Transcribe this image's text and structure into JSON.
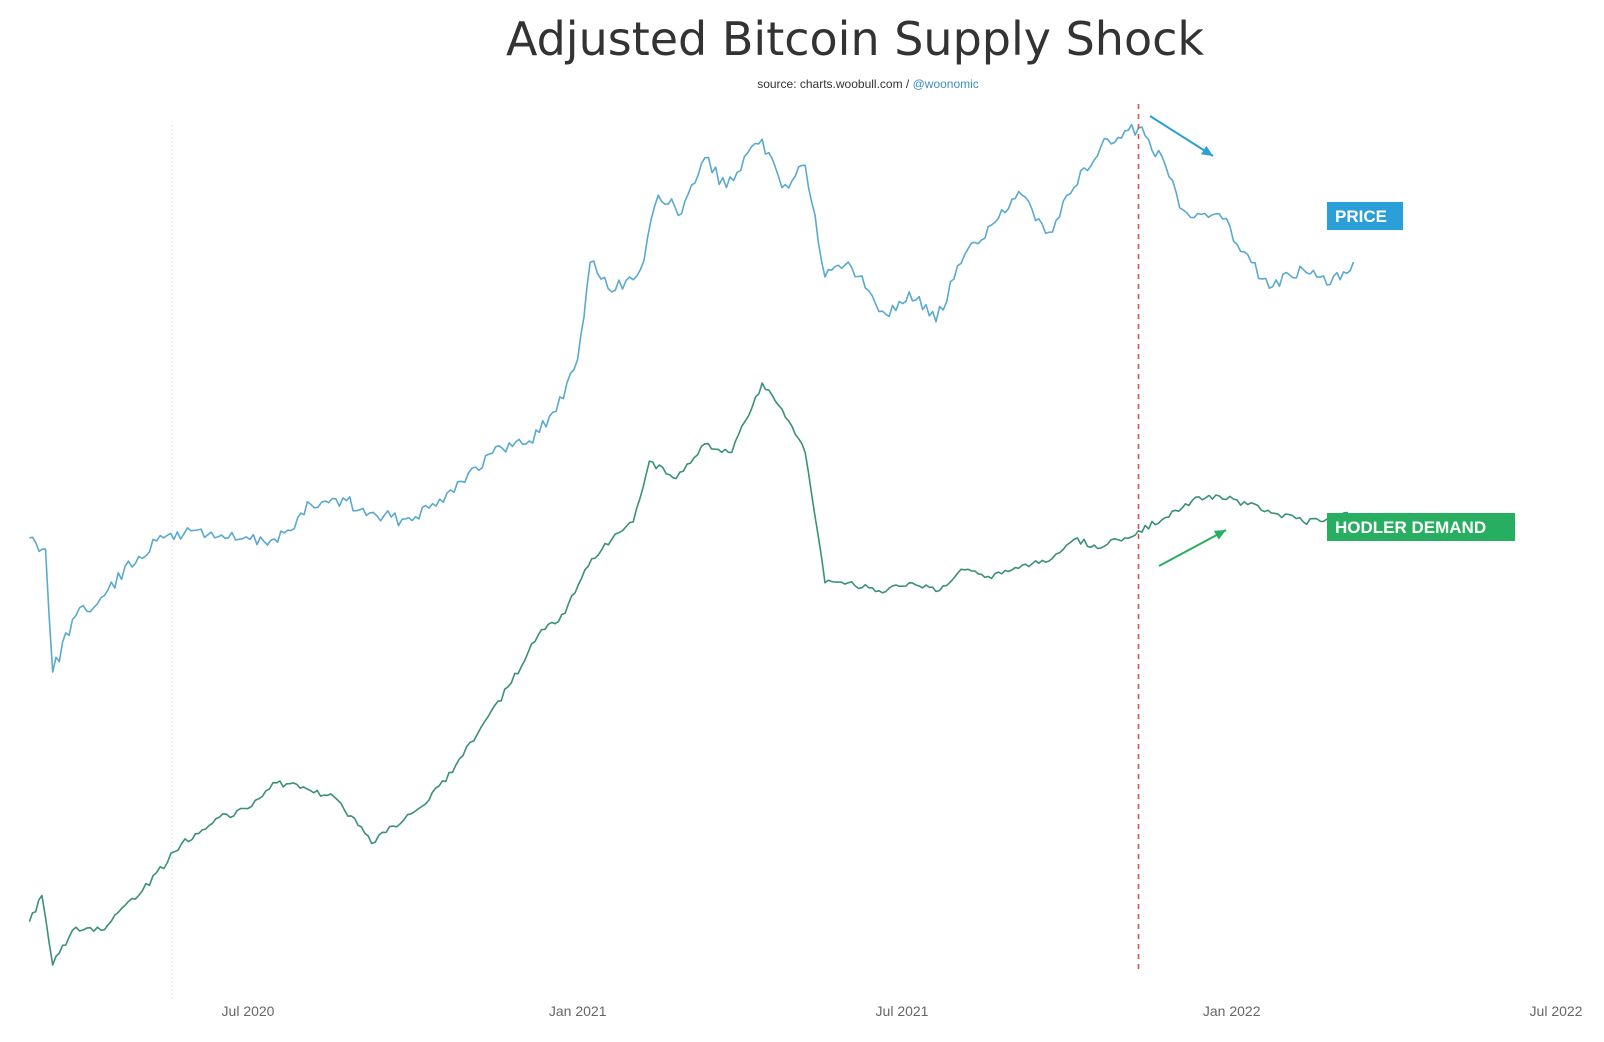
{
  "chart_data": {
    "type": "line",
    "title": "Adjusted Bitcoin Supply Shock",
    "subtitle_prefix": "source: charts.woobull.com / ",
    "subtitle_handle": "@woonomic",
    "xlabel": "",
    "ylabel": "",
    "x_ticks": [
      "Jul 2020",
      "Jan 2021",
      "Jul 2021",
      "Jan 2022",
      "Jul 2022"
    ],
    "xlim": [
      "2020-03-01",
      "2022-07-01"
    ],
    "grid": false,
    "y_axis_visible": false,
    "marker_date": "2021-11-10",
    "marker_style": "red dashed vertical line",
    "colors": {
      "price": "#5aa9cf",
      "hodler": "#3a9078",
      "price_tag": "#2a9fd8",
      "hodler_tag": "#27ae60",
      "marker": "#d9534f",
      "reference_line": "#e2e2e2"
    },
    "annotations": [
      {
        "label": "arrow-down",
        "series": "Price",
        "from": "2021-11-15",
        "to": "2021-12-20"
      },
      {
        "label": "arrow-up",
        "series": "Hodler Demand",
        "from": "2021-11-20",
        "to": "2022-01-01"
      }
    ],
    "series": [
      {
        "name": "PRICE",
        "scale": "relative (no axis shown)",
        "points": [
          [
            "2020-03-01",
            0.58
          ],
          [
            "2020-03-10",
            0.55
          ],
          [
            "2020-03-14",
            0.22
          ],
          [
            "2020-03-25",
            0.36
          ],
          [
            "2020-04-10",
            0.42
          ],
          [
            "2020-05-01",
            0.53
          ],
          [
            "2020-05-15",
            0.58
          ],
          [
            "2020-06-01",
            0.6
          ],
          [
            "2020-06-20",
            0.58
          ],
          [
            "2020-07-10",
            0.57
          ],
          [
            "2020-07-25",
            0.6
          ],
          [
            "2020-08-05",
            0.67
          ],
          [
            "2020-08-25",
            0.68
          ],
          [
            "2020-09-05",
            0.64
          ],
          [
            "2020-09-25",
            0.63
          ],
          [
            "2020-10-10",
            0.66
          ],
          [
            "2020-10-20",
            0.7
          ],
          [
            "2020-11-05",
            0.77
          ],
          [
            "2020-11-20",
            0.82
          ],
          [
            "2020-12-05",
            0.84
          ],
          [
            "2020-12-20",
            0.92
          ],
          [
            "2021-01-01",
            1.06
          ],
          [
            "2021-01-08",
            1.32
          ],
          [
            "2021-01-20",
            1.24
          ],
          [
            "2021-02-05",
            1.3
          ],
          [
            "2021-02-15",
            1.5
          ],
          [
            "2021-02-28",
            1.45
          ],
          [
            "2021-03-13",
            1.6
          ],
          [
            "2021-03-25",
            1.52
          ],
          [
            "2021-04-14",
            1.65
          ],
          [
            "2021-04-25",
            1.52
          ],
          [
            "2021-05-08",
            1.58
          ],
          [
            "2021-05-19",
            1.28
          ],
          [
            "2021-06-01",
            1.32
          ],
          [
            "2021-06-22",
            1.18
          ],
          [
            "2021-07-05",
            1.24
          ],
          [
            "2021-07-20",
            1.16
          ],
          [
            "2021-08-05",
            1.34
          ],
          [
            "2021-08-20",
            1.42
          ],
          [
            "2021-09-06",
            1.5
          ],
          [
            "2021-09-21",
            1.4
          ],
          [
            "2021-10-05",
            1.52
          ],
          [
            "2021-10-20",
            1.63
          ],
          [
            "2021-11-10",
            1.68
          ],
          [
            "2021-11-25",
            1.58
          ],
          [
            "2021-12-05",
            1.46
          ],
          [
            "2021-12-25",
            1.45
          ],
          [
            "2022-01-10",
            1.34
          ],
          [
            "2022-01-22",
            1.25
          ],
          [
            "2022-02-10",
            1.3
          ],
          [
            "2022-02-25",
            1.26
          ],
          [
            "2022-03-10",
            1.32
          ]
        ]
      },
      {
        "name": "HODLER DEMAND",
        "scale": "relative (no axis shown)",
        "points": [
          [
            "2020-03-01",
            0.12
          ],
          [
            "2020-03-08",
            0.18
          ],
          [
            "2020-03-14",
            0.02
          ],
          [
            "2020-03-25",
            0.1
          ],
          [
            "2020-04-10",
            0.1
          ],
          [
            "2020-05-01",
            0.18
          ],
          [
            "2020-05-25",
            0.3
          ],
          [
            "2020-06-15",
            0.36
          ],
          [
            "2020-07-01",
            0.38
          ],
          [
            "2020-07-15",
            0.44
          ],
          [
            "2020-08-01",
            0.43
          ],
          [
            "2020-08-20",
            0.4
          ],
          [
            "2020-09-08",
            0.3
          ],
          [
            "2020-09-20",
            0.34
          ],
          [
            "2020-10-10",
            0.4
          ],
          [
            "2020-10-25",
            0.48
          ],
          [
            "2020-11-10",
            0.58
          ],
          [
            "2020-11-25",
            0.67
          ],
          [
            "2020-12-10",
            0.78
          ],
          [
            "2020-12-25",
            0.83
          ],
          [
            "2021-01-05",
            0.93
          ],
          [
            "2021-01-20",
            1.0
          ],
          [
            "2021-02-01",
            1.04
          ],
          [
            "2021-02-10",
            1.18
          ],
          [
            "2021-02-25",
            1.14
          ],
          [
            "2021-03-13",
            1.22
          ],
          [
            "2021-03-28",
            1.2
          ],
          [
            "2021-04-14",
            1.36
          ],
          [
            "2021-04-25",
            1.3
          ],
          [
            "2021-05-08",
            1.2
          ],
          [
            "2021-05-19",
            0.9
          ],
          [
            "2021-06-01",
            0.9
          ],
          [
            "2021-06-22",
            0.88
          ],
          [
            "2021-07-05",
            0.9
          ],
          [
            "2021-07-20",
            0.88
          ],
          [
            "2021-08-05",
            0.93
          ],
          [
            "2021-08-20",
            0.91
          ],
          [
            "2021-09-06",
            0.94
          ],
          [
            "2021-09-21",
            0.95
          ],
          [
            "2021-10-05",
            1.0
          ],
          [
            "2021-10-20",
            0.98
          ],
          [
            "2021-11-10",
            1.02
          ],
          [
            "2021-11-25",
            1.05
          ],
          [
            "2021-12-10",
            1.09
          ],
          [
            "2021-12-25",
            1.1
          ],
          [
            "2022-01-10",
            1.08
          ],
          [
            "2022-01-25",
            1.06
          ],
          [
            "2022-02-10",
            1.04
          ],
          [
            "2022-02-25",
            1.05
          ],
          [
            "2022-03-10",
            1.06
          ]
        ]
      }
    ],
    "legend": [
      {
        "label": "PRICE",
        "placement": "right of price line"
      },
      {
        "label": "HODLER DEMAND",
        "placement": "right of hodler line"
      }
    ]
  }
}
